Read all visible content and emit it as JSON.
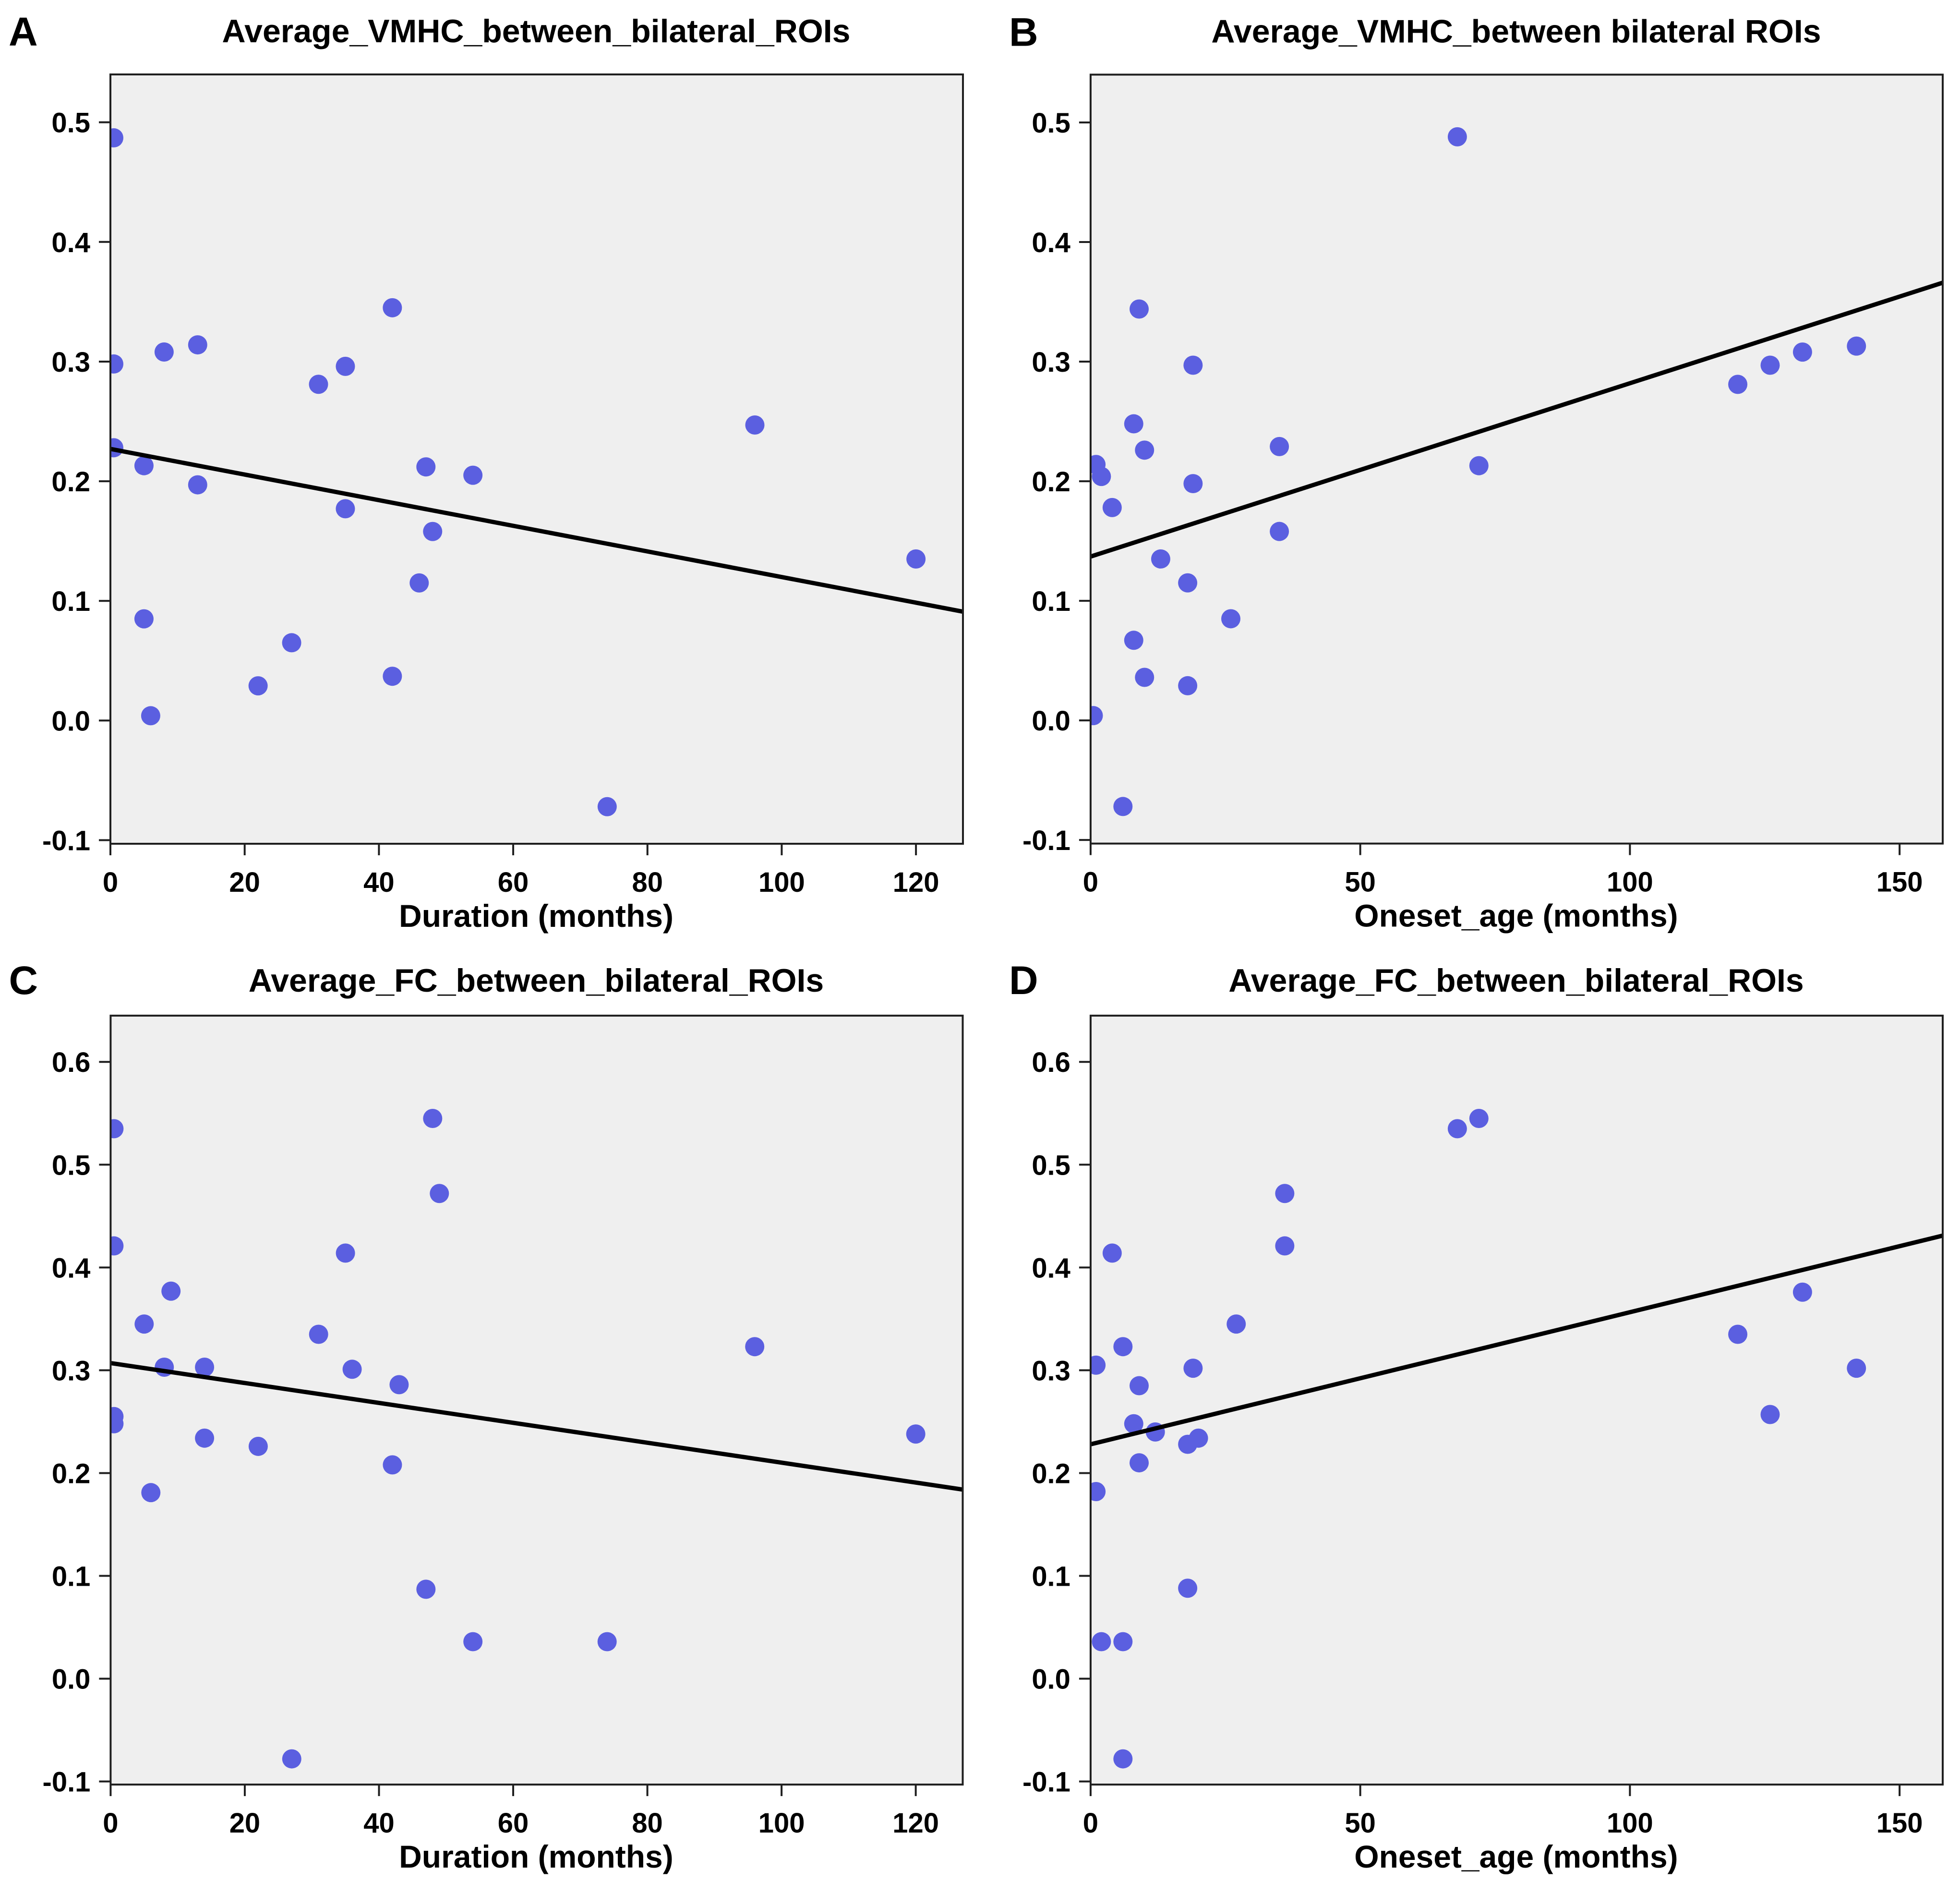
{
  "figure": {
    "background": "#ffffff",
    "panel_count": 4
  },
  "styles": {
    "dot_color": "#5b5fe0",
    "dot_radius": 20,
    "line_color": "#000000",
    "line_width": 9,
    "plot_bg": "#efefef",
    "frame_color": "#1f1f1f",
    "frame_width": 4,
    "tick_color": "#1f1f1f",
    "text_color": "#000000"
  },
  "chart_data": [
    {
      "panel": "A",
      "type": "scatter",
      "title": "Average_VMHC_between_bilateral_ROIs",
      "xlabel": "Duration (months)",
      "ylabel": "",
      "xlim": [
        0,
        127
      ],
      "ylim": [
        -0.103,
        0.54
      ],
      "xticks": [
        0,
        20,
        40,
        60,
        80,
        100,
        120
      ],
      "yticks": [
        -0.1,
        0.0,
        0.1,
        0.2,
        0.3,
        0.4,
        0.5
      ],
      "grid": false,
      "legend": null,
      "points": [
        [
          0.5,
          0.487
        ],
        [
          0.5,
          0.298
        ],
        [
          0.5,
          0.228
        ],
        [
          5,
          0.213
        ],
        [
          8,
          0.308
        ],
        [
          13,
          0.314
        ],
        [
          13,
          0.197
        ],
        [
          31,
          0.281
        ],
        [
          35,
          0.296
        ],
        [
          42,
          0.345
        ],
        [
          35,
          0.177
        ],
        [
          47,
          0.212
        ],
        [
          54,
          0.205
        ],
        [
          48,
          0.158
        ],
        [
          46,
          0.115
        ],
        [
          5,
          0.085
        ],
        [
          27,
          0.065
        ],
        [
          22,
          0.029
        ],
        [
          42,
          0.037
        ],
        [
          6,
          0.004
        ],
        [
          74,
          -0.072
        ],
        [
          96,
          0.247
        ],
        [
          120,
          0.135
        ]
      ],
      "regression_line": {
        "x": [
          0,
          127
        ],
        "y": [
          0.227,
          0.091
        ]
      }
    },
    {
      "panel": "B",
      "type": "scatter",
      "title": "Average_VMHC_between bilateral ROIs",
      "xlabel": "Oneset_age (months)",
      "ylabel": "",
      "xlim": [
        0,
        158
      ],
      "ylim": [
        -0.103,
        0.54
      ],
      "xticks": [
        0,
        50,
        100,
        150
      ],
      "yticks": [
        -0.1,
        0.0,
        0.1,
        0.2,
        0.3,
        0.4,
        0.5
      ],
      "grid": false,
      "legend": null,
      "points": [
        [
          68,
          0.488
        ],
        [
          9,
          0.344
        ],
        [
          19,
          0.297
        ],
        [
          8,
          0.248
        ],
        [
          10,
          0.226
        ],
        [
          1,
          0.214
        ],
        [
          2,
          0.204
        ],
        [
          35,
          0.229
        ],
        [
          4,
          0.178
        ],
        [
          19,
          0.198
        ],
        [
          35,
          0.158
        ],
        [
          13,
          0.135
        ],
        [
          18,
          0.115
        ],
        [
          26,
          0.085
        ],
        [
          8,
          0.067
        ],
        [
          10,
          0.036
        ],
        [
          18,
          0.029
        ],
        [
          0.5,
          0.004
        ],
        [
          6,
          -0.072
        ],
        [
          72,
          0.213
        ],
        [
          120,
          0.281
        ],
        [
          126,
          0.297
        ],
        [
          132,
          0.308
        ],
        [
          142,
          0.313
        ]
      ],
      "regression_line": {
        "x": [
          0,
          158
        ],
        "y": [
          0.137,
          0.366
        ]
      }
    },
    {
      "panel": "C",
      "type": "scatter",
      "title": "Average_FC_between_bilateral_ROIs",
      "xlabel": "Duration (months)",
      "ylabel": "",
      "xlim": [
        0,
        127
      ],
      "ylim": [
        -0.103,
        0.645
      ],
      "xticks": [
        0,
        20,
        40,
        60,
        80,
        100,
        120
      ],
      "yticks": [
        -0.1,
        0.0,
        0.1,
        0.2,
        0.3,
        0.4,
        0.5,
        0.6
      ],
      "grid": false,
      "legend": null,
      "points": [
        [
          0.5,
          0.535
        ],
        [
          48,
          0.545
        ],
        [
          49,
          0.472
        ],
        [
          0.5,
          0.421
        ],
        [
          35,
          0.414
        ],
        [
          9,
          0.377
        ],
        [
          5,
          0.345
        ],
        [
          31,
          0.335
        ],
        [
          8,
          0.303
        ],
        [
          14,
          0.303
        ],
        [
          36,
          0.301
        ],
        [
          43,
          0.286
        ],
        [
          0.5,
          0.255
        ],
        [
          0.5,
          0.248
        ],
        [
          14,
          0.234
        ],
        [
          22,
          0.226
        ],
        [
          42,
          0.208
        ],
        [
          6,
          0.181
        ],
        [
          47,
          0.087
        ],
        [
          54,
          0.036
        ],
        [
          74,
          0.036
        ],
        [
          27,
          -0.078
        ],
        [
          96,
          0.323
        ],
        [
          120,
          0.238
        ]
      ],
      "regression_line": {
        "x": [
          0,
          127
        ],
        "y": [
          0.307,
          0.184
        ]
      }
    },
    {
      "panel": "D",
      "type": "scatter",
      "title": "Average_FC_between_bilateral_ROIs",
      "xlabel": "Oneset_age (months)",
      "ylabel": "",
      "xlim": [
        0,
        158
      ],
      "ylim": [
        -0.103,
        0.645
      ],
      "xticks": [
        0,
        50,
        100,
        150
      ],
      "yticks": [
        -0.1,
        0.0,
        0.1,
        0.2,
        0.3,
        0.4,
        0.5,
        0.6
      ],
      "grid": false,
      "legend": null,
      "points": [
        [
          68,
          0.535
        ],
        [
          72,
          0.545
        ],
        [
          36,
          0.472
        ],
        [
          36,
          0.421
        ],
        [
          4,
          0.414
        ],
        [
          27,
          0.345
        ],
        [
          6,
          0.323
        ],
        [
          1,
          0.305
        ],
        [
          19,
          0.302
        ],
        [
          9,
          0.285
        ],
        [
          8,
          0.248
        ],
        [
          12,
          0.24
        ],
        [
          20,
          0.234
        ],
        [
          18,
          0.228
        ],
        [
          9,
          0.21
        ],
        [
          1,
          0.182
        ],
        [
          18,
          0.088
        ],
        [
          2,
          0.036
        ],
        [
          6,
          0.036
        ],
        [
          6,
          -0.078
        ],
        [
          120,
          0.335
        ],
        [
          132,
          0.376
        ],
        [
          126,
          0.257
        ],
        [
          142,
          0.302
        ]
      ],
      "regression_line": {
        "x": [
          0,
          158
        ],
        "y": [
          0.228,
          0.431
        ]
      }
    }
  ]
}
